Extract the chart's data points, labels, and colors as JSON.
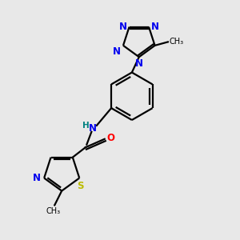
{
  "background_color": "#e8e8e8",
  "bond_color": "#000000",
  "N_color": "#0000ee",
  "S_color": "#bbbb00",
  "O_color": "#ff0000",
  "NH_color": "#008080",
  "font_size": 8.5,
  "bond_width": 1.6,
  "figsize": [
    3.0,
    3.0
  ],
  "dpi": 100,
  "xlim": [
    0,
    10
  ],
  "ylim": [
    0,
    10
  ]
}
